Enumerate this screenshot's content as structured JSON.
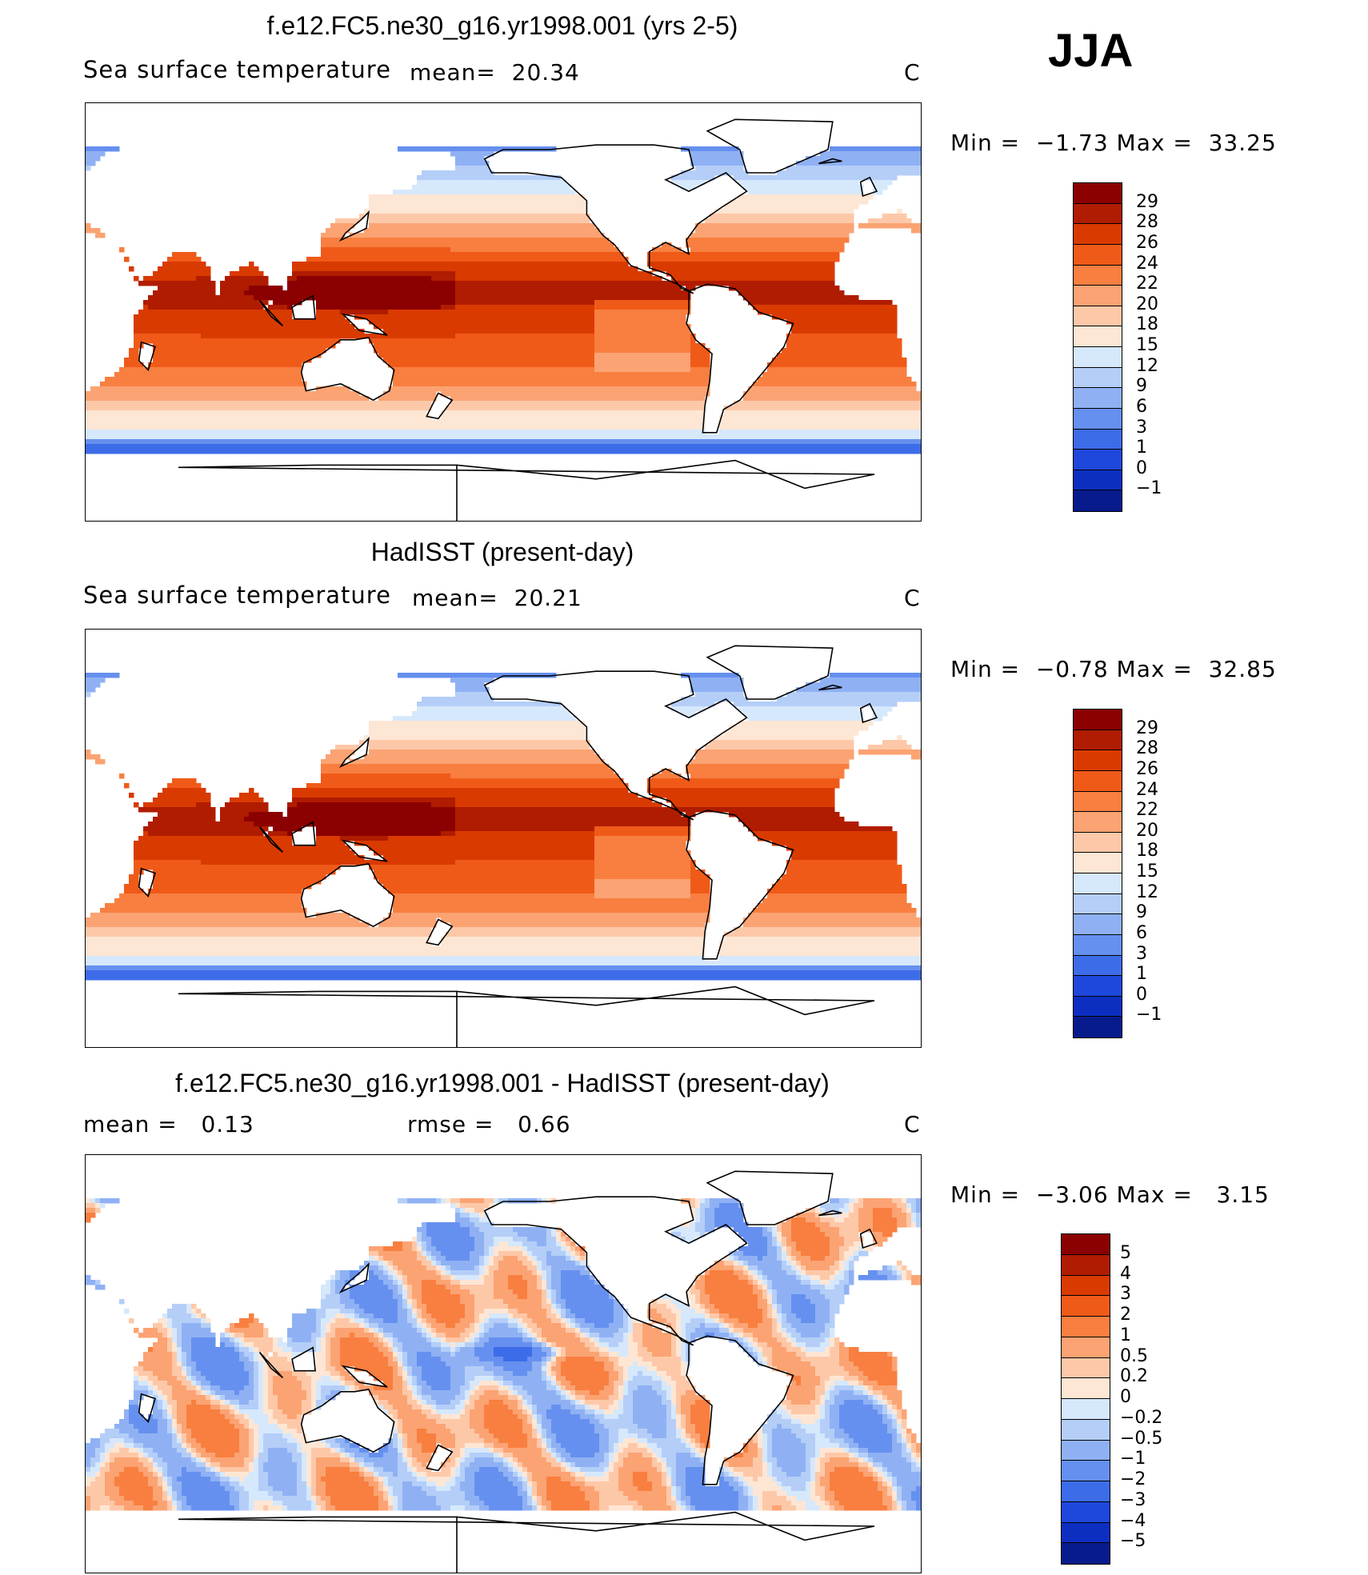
{
  "season": "JJA",
  "panels": [
    {
      "title": "f.e12.FC5.ne30_g16.yr1998.001 (yrs 2-5)",
      "variable": "Sea surface temperature",
      "stat1": "mean=  20.34",
      "stat2": "",
      "units": "C",
      "minmax": "Min =  −1.73 Max =  33.25",
      "levels": [
        "29",
        "28",
        "26",
        "24",
        "22",
        "20",
        "18",
        "15",
        "12",
        "9",
        "6",
        "3",
        "1",
        "0",
        "−1"
      ],
      "colors": [
        "#8b0000",
        "#b01c00",
        "#d93a00",
        "#f05a18",
        "#f87f40",
        "#fba373",
        "#fdc8a8",
        "#fee6d4",
        "#d6e8fb",
        "#b4cef8",
        "#8fb1f4",
        "#6690ef",
        "#3d6ce8",
        "#1e48dc",
        "#0c2fc2",
        "#081b8c"
      ],
      "field": "abs"
    },
    {
      "title": "HadISST (present-day)",
      "variable": "Sea surface temperature",
      "stat1": "mean=  20.21",
      "stat2": "",
      "units": "C",
      "minmax": "Min =  −0.78 Max =  32.85",
      "levels": [
        "29",
        "28",
        "26",
        "24",
        "22",
        "20",
        "18",
        "15",
        "12",
        "9",
        "6",
        "3",
        "1",
        "0",
        "−1"
      ],
      "colors": [
        "#8b0000",
        "#b01c00",
        "#d93a00",
        "#f05a18",
        "#f87f40",
        "#fba373",
        "#fdc8a8",
        "#fee6d4",
        "#d6e8fb",
        "#b4cef8",
        "#8fb1f4",
        "#6690ef",
        "#3d6ce8",
        "#1e48dc",
        "#0c2fc2",
        "#081b8c"
      ],
      "field": "abs"
    },
    {
      "title": "f.e12.FC5.ne30_g16.yr1998.001 - HadISST (present-day)",
      "variable": "",
      "stat1": "mean =   0.13",
      "stat2": "rmse =   0.66",
      "units": "C",
      "minmax": "Min =  −3.06 Max =   3.15",
      "levels": [
        "5",
        "4",
        "3",
        "2",
        "1",
        "0.5",
        "0.2",
        "0",
        "−0.2",
        "−0.5",
        "−1",
        "−2",
        "−3",
        "−4",
        "−5"
      ],
      "colors": [
        "#8b0000",
        "#b01c00",
        "#d93a00",
        "#f05a18",
        "#f87f40",
        "#fba373",
        "#fdc8a8",
        "#fee6d4",
        "#d6e8fb",
        "#b4cef8",
        "#8fb1f4",
        "#6690ef",
        "#3d6ce8",
        "#1e48dc",
        "#0c2fc2",
        "#081b8c"
      ],
      "field": "diff"
    }
  ]
}
